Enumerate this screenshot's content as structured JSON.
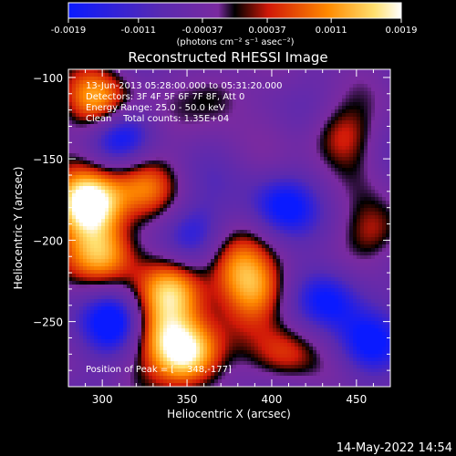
{
  "chart_data": {
    "type": "heatmap",
    "title": "Reconstructed RHESSI Image",
    "xlabel": "Heliocentric X (arcsec)",
    "ylabel": "Heliocentric Y (arcsec)",
    "x_ticks": [
      300,
      350,
      400,
      450
    ],
    "y_ticks": [
      -100,
      -150,
      -200,
      -250
    ],
    "xlim": [
      280,
      470
    ],
    "ylim": [
      -290,
      -95
    ],
    "colorbar": {
      "ticks": [
        "-0.0019",
        "-0.0011",
        "-0.00037",
        "0.00037",
        "0.0011",
        "0.0019"
      ],
      "range": [
        -0.0019,
        0.0019
      ],
      "unit_label": "(photons cm⁻² s⁻¹ asec⁻²)",
      "colors": [
        "#0a1aff",
        "#5a2ab0",
        "#7a2aa0",
        "#000000",
        "#d01808",
        "#ff8a00",
        "#ffe070",
        "#ffffff"
      ]
    },
    "annotations": [
      "13-Jun-2013 05:28:00.000 to 05:31:20.000",
      "Detectors: 3F 4F 5F 6F 7F 8F, Att 0",
      "Energy Range: 25.0 - 50.0 keV",
      "Clean    Total counts: 1.35E+04"
    ],
    "peak_label": "Position of Peak = [",
    "peak_value": "348,-177]",
    "sources": [
      {
        "x": 292,
        "y": -178,
        "amp": 1.6
      },
      {
        "x": 350,
        "y": -270,
        "amp": 1.5
      },
      {
        "x": 300,
        "y": -208,
        "amp": 1.1
      },
      {
        "x": 342,
        "y": -230,
        "amp": 1.0
      },
      {
        "x": 392,
        "y": -232,
        "amp": 0.8
      },
      {
        "x": 378,
        "y": -215,
        "amp": 0.7
      },
      {
        "x": 298,
        "y": -115,
        "amp": 1.0
      },
      {
        "x": 440,
        "y": -135,
        "amp": 0.6
      },
      {
        "x": 462,
        "y": -195,
        "amp": 0.6
      },
      {
        "x": 325,
        "y": -165,
        "amp": 0.7
      },
      {
        "x": 332,
        "y": -256,
        "amp": 0.7
      },
      {
        "x": 408,
        "y": -270,
        "amp": 0.6
      },
      {
        "x": 368,
        "y": -110,
        "amp": 0.5
      },
      {
        "x": 310,
        "y": -250,
        "amp": -0.8
      },
      {
        "x": 435,
        "y": -235,
        "amp": -0.7
      },
      {
        "x": 405,
        "y": -180,
        "amp": -0.6
      },
      {
        "x": 310,
        "y": -135,
        "amp": -0.6
      },
      {
        "x": 455,
        "y": -265,
        "amp": -0.6
      },
      {
        "x": 352,
        "y": -195,
        "amp": -0.5
      }
    ]
  },
  "footer": {
    "date": "14-May-2022 14:54"
  }
}
